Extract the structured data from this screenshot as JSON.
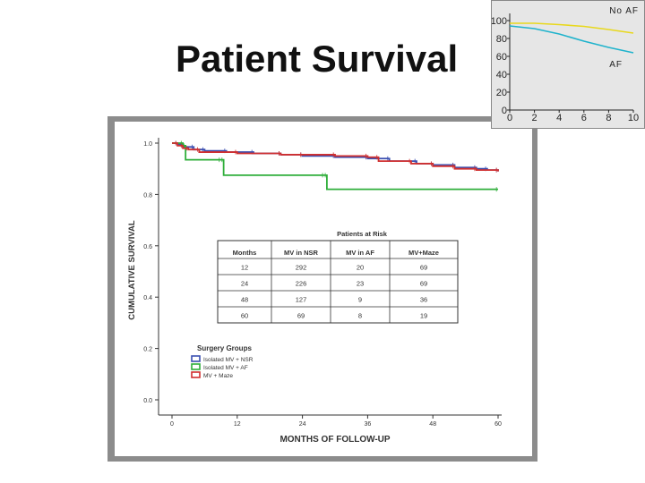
{
  "slide": {
    "title": "Patient Survival"
  },
  "chart_data": [
    {
      "type": "line",
      "title": "",
      "xlabel": "MONTHS OF FOLLOW-UP",
      "ylabel": "CUMULATIVE SURVIVAL",
      "xlim": [
        0,
        60
      ],
      "ylim": [
        0,
        1
      ],
      "x_ticks": [
        0,
        12,
        24,
        36,
        48,
        60
      ],
      "y_ticks": [
        "0.0",
        "0.2",
        "0.4",
        "0.6",
        "0.8",
        "1.0"
      ],
      "grid": false,
      "legend": {
        "title": "Surgery Groups",
        "position": "bottom-left",
        "entries": [
          "Isolated MV + NSR",
          "Isolated MV + AF",
          "MV + Maze"
        ]
      },
      "series": [
        {
          "name": "Isolated MV + NSR",
          "color": "#3a4fb0",
          "x": [
            0,
            1,
            2,
            4,
            6,
            10,
            15,
            20,
            24,
            30,
            36,
            40,
            45,
            48,
            52,
            56,
            58,
            60
          ],
          "y": [
            1.0,
            0.995,
            0.985,
            0.975,
            0.97,
            0.965,
            0.96,
            0.955,
            0.95,
            0.945,
            0.94,
            0.93,
            0.92,
            0.915,
            0.905,
            0.9,
            0.895,
            0.89
          ]
        },
        {
          "name": "Isolated MV + AF",
          "color": "#2fae3a",
          "x": [
            0,
            2,
            2.5,
            9,
            9.5,
            28,
            28.5,
            60
          ],
          "y": [
            1.0,
            0.99,
            0.935,
            0.935,
            0.875,
            0.875,
            0.82,
            0.82
          ]
        },
        {
          "name": "MV + Maze",
          "color": "#d03030",
          "x": [
            0,
            1,
            2,
            3,
            5,
            12,
            20,
            24,
            30,
            36,
            38,
            44,
            48,
            52,
            56,
            60
          ],
          "y": [
            1.0,
            0.99,
            0.98,
            0.975,
            0.965,
            0.96,
            0.955,
            0.955,
            0.95,
            0.945,
            0.93,
            0.92,
            0.91,
            0.9,
            0.895,
            0.89
          ]
        }
      ],
      "table": {
        "title": "Patients at Risk",
        "headers": [
          "Months",
          "MV in NSR",
          "MV in AF",
          "MV+Maze"
        ],
        "rows": [
          [
            "12",
            "292",
            "20",
            "69"
          ],
          [
            "24",
            "226",
            "23",
            "69"
          ],
          [
            "48",
            "127",
            "9",
            "36"
          ],
          [
            "60",
            "69",
            "8",
            "19"
          ]
        ]
      }
    },
    {
      "type": "line",
      "title": "",
      "xlim": [
        0,
        10
      ],
      "ylim": [
        0,
        100
      ],
      "x_ticks": [
        "0",
        "2",
        "4",
        "6",
        "8",
        "10"
      ],
      "y_ticks": [
        "0",
        "20",
        "40",
        "60",
        "80",
        "100"
      ],
      "series": [
        {
          "name": "No AF",
          "color": "#e8d81c",
          "x": [
            0,
            2,
            4,
            6,
            8,
            10
          ],
          "y": [
            97,
            97,
            95.5,
            93.5,
            90,
            86
          ]
        },
        {
          "name": "AF",
          "color": "#1fb3cc",
          "x": [
            0,
            2,
            4,
            6,
            8,
            10
          ],
          "y": [
            94,
            91,
            85,
            77,
            70,
            64
          ]
        }
      ]
    }
  ]
}
